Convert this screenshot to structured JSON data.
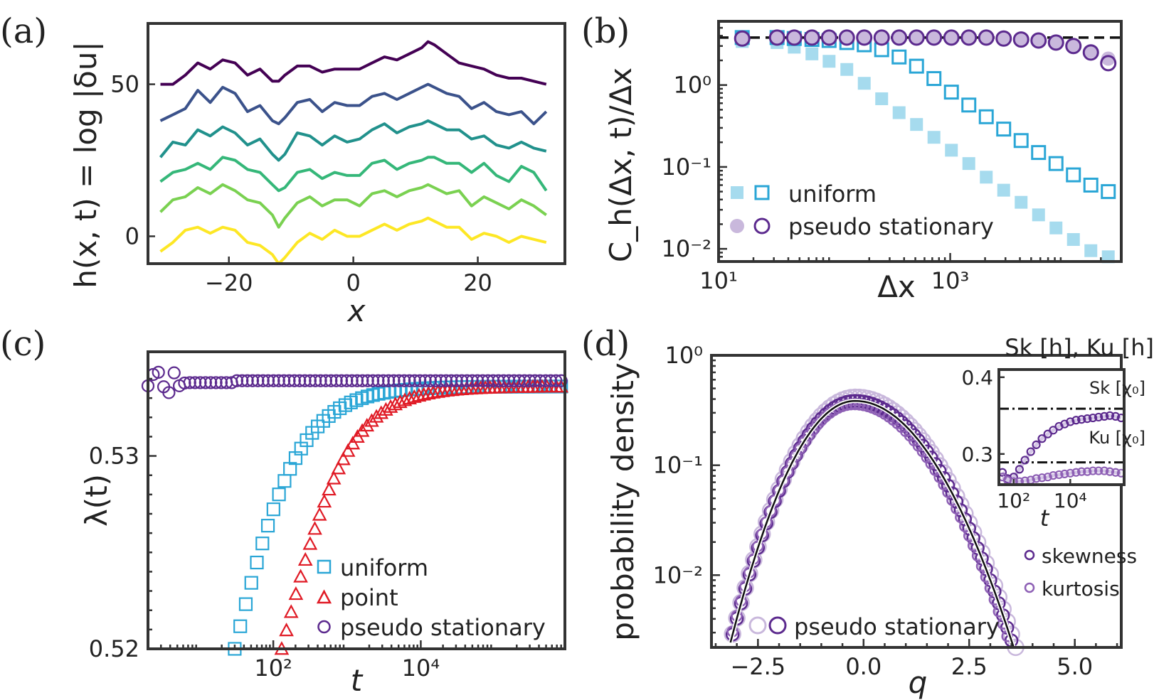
{
  "chart_data": [
    {
      "panel": "(a)",
      "type": "line",
      "xlabel": "x",
      "ylabel": "h(x, t) = log |δu|",
      "xlim": [
        -33,
        34
      ],
      "ylim": [
        -9,
        70
      ],
      "xticks": [
        -20,
        0,
        20
      ],
      "yticks": [
        0,
        50
      ],
      "xtick_labels": [
        "−20",
        "0",
        "20"
      ],
      "ytick_labels": [
        "0",
        "50"
      ],
      "x": [
        -31,
        -29,
        -27,
        -25,
        -23,
        -21,
        -19,
        -17,
        -15,
        -13,
        -12,
        -11,
        -9,
        -7,
        -5,
        -3,
        -1,
        1,
        3,
        5,
        7,
        9,
        11,
        12,
        13,
        15,
        17,
        19,
        21,
        23,
        25,
        27,
        29,
        31
      ],
      "series": [
        {
          "color": "#440154",
          "values": [
            50,
            50,
            53,
            57,
            55,
            58,
            57,
            53,
            55,
            51,
            51,
            53,
            56,
            56,
            54,
            55,
            55,
            55,
            57,
            59,
            58,
            60,
            62,
            64,
            63,
            60,
            57,
            56,
            55,
            53,
            52,
            52,
            51,
            50
          ]
        },
        {
          "color": "#3b528b",
          "values": [
            38,
            40,
            42,
            48,
            44,
            49,
            47,
            41,
            43,
            38,
            37,
            39,
            44,
            45,
            41,
            44,
            43,
            43,
            46,
            47,
            45,
            47,
            49,
            50,
            49,
            47,
            46,
            42,
            44,
            41,
            40,
            41,
            37,
            41
          ]
        },
        {
          "color": "#21918c",
          "values": [
            26,
            31,
            30,
            35,
            33,
            36,
            34,
            30,
            32,
            27,
            25,
            27,
            34,
            33,
            30,
            33,
            31,
            32,
            35,
            37,
            34,
            36,
            37,
            38,
            37,
            35,
            35,
            32,
            33,
            30,
            29,
            31,
            29,
            28
          ]
        },
        {
          "color": "#35b779",
          "values": [
            18,
            21,
            22,
            24,
            22,
            26,
            25,
            22,
            21,
            17,
            15,
            16,
            21,
            22,
            19,
            21,
            20,
            20,
            24,
            25,
            22,
            24,
            25,
            26,
            26,
            24,
            24,
            21,
            24,
            20,
            18,
            23,
            21,
            15
          ]
        },
        {
          "color": "#7ad151",
          "values": [
            8,
            12,
            13,
            16,
            14,
            17,
            15,
            12,
            11,
            7,
            3,
            6,
            11,
            13,
            10,
            12,
            12,
            10,
            14,
            15,
            13,
            15,
            16,
            17,
            16,
            14,
            15,
            10,
            13,
            11,
            9,
            12,
            10,
            7
          ]
        },
        {
          "color": "#fde725",
          "values": [
            -5,
            -2,
            2,
            3,
            1,
            3,
            2,
            -2,
            -3,
            -6,
            -9,
            -7,
            -2,
            1,
            -1,
            2,
            0,
            0,
            2,
            4,
            2,
            4,
            5,
            6,
            5,
            3,
            3,
            -1,
            1,
            0,
            -2,
            0,
            -1,
            -2
          ]
        }
      ]
    },
    {
      "panel": "(b)",
      "type": "scatter",
      "xlabel": "Δx",
      "ylabel": "C_h(Δx, t)/Δx",
      "xscale": "log",
      "yscale": "log",
      "xlim": [
        10,
        30000
      ],
      "ylim": [
        0.007,
        6
      ],
      "xticks": [
        10,
        1000
      ],
      "xtick_labels": [
        "10¹",
        "10³"
      ],
      "yticks": [
        0.01,
        0.1,
        1
      ],
      "ytick_labels": [
        "10⁻²",
        "10⁻¹",
        "10⁰"
      ],
      "reference_line": 3.8,
      "legend": [
        "uniform",
        "pseudo stationary"
      ],
      "legend_position": "lower-left",
      "series": [
        {
          "name": "uniform",
          "style": "filled-square",
          "color": "#a6dbee",
          "x": [
            16,
            32,
            45,
            64,
            90,
            128,
            181,
            256,
            362,
            512,
            724,
            1024,
            1448,
            2048,
            2896,
            4096,
            5793,
            8192,
            11585,
            16384,
            23170
          ],
          "y": [
            3.4,
            3.3,
            2.9,
            2.4,
            1.95,
            1.55,
            1.05,
            0.68,
            0.46,
            0.33,
            0.23,
            0.16,
            0.11,
            0.075,
            0.052,
            0.037,
            0.026,
            0.018,
            0.013,
            0.0095,
            0.008
          ]
        },
        {
          "name": "uniform",
          "style": "open-square",
          "color": "#2aa6d6",
          "x": [
            16,
            32,
            45,
            64,
            90,
            128,
            181,
            256,
            362,
            512,
            724,
            1024,
            1448,
            2048,
            2896,
            4096,
            5793,
            8192,
            11585,
            16384,
            23170
          ],
          "y": [
            3.8,
            3.8,
            3.7,
            3.6,
            3.5,
            3.3,
            3.1,
            2.7,
            2.2,
            1.7,
            1.2,
            0.82,
            0.57,
            0.41,
            0.29,
            0.21,
            0.15,
            0.11,
            0.08,
            0.06,
            0.05
          ]
        },
        {
          "name": "pseudo stationary",
          "style": "filled-circle",
          "color": "#c9b8dc",
          "x": [
            16,
            32,
            45,
            64,
            90,
            128,
            181,
            256,
            362,
            512,
            724,
            1024,
            1448,
            2048,
            2896,
            4096,
            5793,
            8192,
            11585,
            16384,
            23170
          ],
          "y": [
            3.7,
            3.8,
            3.8,
            3.8,
            3.8,
            3.8,
            3.8,
            3.8,
            3.8,
            3.8,
            3.8,
            3.8,
            3.8,
            3.8,
            3.7,
            3.6,
            3.5,
            3.3,
            3.0,
            2.6,
            2.1
          ]
        },
        {
          "name": "pseudo stationary",
          "style": "open-circle",
          "color": "#5c2a8e",
          "x": [
            16,
            32,
            45,
            64,
            90,
            128,
            181,
            256,
            362,
            512,
            724,
            1024,
            1448,
            2048,
            2896,
            4096,
            5793,
            8192,
            11585,
            16384,
            23170
          ],
          "y": [
            3.7,
            3.8,
            3.8,
            3.8,
            3.8,
            3.8,
            3.8,
            3.8,
            3.8,
            3.8,
            3.8,
            3.8,
            3.8,
            3.8,
            3.7,
            3.6,
            3.5,
            3.3,
            3.0,
            2.5,
            1.85
          ]
        }
      ]
    },
    {
      "panel": "(c)",
      "type": "scatter",
      "xlabel": "t",
      "ylabel": "λ(t)",
      "xscale": "log",
      "xlim": [
        2,
        900000
      ],
      "ylim": [
        0.52,
        0.5354
      ],
      "xticks": [
        100,
        10000
      ],
      "xtick_labels": [
        "10²",
        "10⁴"
      ],
      "yticks": [
        0.52,
        0.53
      ],
      "ytick_labels": [
        "0.52",
        "0.53"
      ],
      "legend": [
        "uniform",
        "point",
        "pseudo stationary"
      ],
      "legend_position": "lower-right",
      "series": [
        {
          "name": "uniform",
          "style": "open-square",
          "color": "#2aa6d6",
          "x_range": [
            30,
            800000
          ],
          "lambda_min": 0.52,
          "lambda_inf": 0.5336,
          "tau": 55,
          "beta": 0.92
        },
        {
          "name": "point",
          "style": "open-triangle",
          "color": "#e01a25",
          "x_range": [
            130,
            800000
          ],
          "lambda_min": 0.52,
          "lambda_inf": 0.5336,
          "tau": 250,
          "beta": 0.92
        },
        {
          "name": "pseudo stationary",
          "style": "open-circle",
          "color": "#5c2a8e",
          "x_range": [
            2,
            800000
          ],
          "y_plateau": 0.5339
        }
      ]
    },
    {
      "panel": "(d)",
      "type": "scatter",
      "xlabel": "q",
      "ylabel": "probability density",
      "yscale": "log",
      "xlim": [
        -3.6,
        6.1
      ],
      "ylim": [
        0.0022,
        1.0
      ],
      "xticks": [
        -2.5,
        0.0,
        2.5,
        5.0
      ],
      "xtick_labels": [
        "−2.5",
        "0.0",
        "2.5",
        "5.0"
      ],
      "yticks": [
        0.01,
        0.1,
        1.0
      ],
      "ytick_labels": [
        "10⁻²",
        "10⁻¹",
        "10⁰"
      ],
      "legend": [
        "pseudo stationary"
      ],
      "legend_position": "lower-center",
      "curve_peak": 0.385,
      "curve_mode": -0.2,
      "inset": {
        "title": "Sk [h], Ku [h]",
        "xlabel": "t",
        "xscale": "log",
        "xlim": [
          30,
          800000
        ],
        "ylim": [
          0.26,
          0.41
        ],
        "xticks": [
          100,
          10000
        ],
        "xtick_labels": [
          "10²",
          "10⁴"
        ],
        "yticks": [
          0.3,
          0.4
        ],
        "ytick_labels": [
          "0.3",
          "0.4"
        ],
        "reference_lines": [
          {
            "label": "Sk [χ₀]",
            "value": 0.359
          },
          {
            "label": "Ku [χ₀]",
            "value": 0.289
          }
        ],
        "legend": [
          "skewness",
          "kurtosis"
        ],
        "series": [
          {
            "name": "skewness",
            "color": "#5c2a8e",
            "t": [
              40,
              60,
              100,
              160,
              250,
              400,
              630,
              1000,
              1600,
              2500,
              4000,
              6300,
              10000,
              16000,
              25000,
              40000,
              63000,
              100000,
              160000,
              250000,
              400000,
              630000
            ],
            "values": [
              0.276,
              0.268,
              0.27,
              0.28,
              0.292,
              0.303,
              0.312,
              0.32,
              0.326,
              0.331,
              0.336,
              0.339,
              0.342,
              0.344,
              0.345,
              0.346,
              0.347,
              0.348,
              0.349,
              0.35,
              0.349,
              0.347
            ]
          },
          {
            "name": "kurtosis",
            "color": "#8e60b5",
            "t": [
              40,
              60,
              100,
              160,
              250,
              400,
              630,
              1000,
              1600,
              2500,
              4000,
              6300,
              10000,
              16000,
              25000,
              40000,
              63000,
              100000,
              160000,
              250000,
              400000,
              630000
            ],
            "values": [
              0.27,
              0.266,
              0.264,
              0.264,
              0.265,
              0.266,
              0.268,
              0.269,
              0.27,
              0.272,
              0.273,
              0.274,
              0.275,
              0.276,
              0.277,
              0.277,
              0.278,
              0.278,
              0.278,
              0.277,
              0.276,
              0.275
            ]
          }
        ]
      }
    }
  ],
  "panel_labels": [
    "(a)",
    "(b)",
    "(c)",
    "(d)"
  ]
}
